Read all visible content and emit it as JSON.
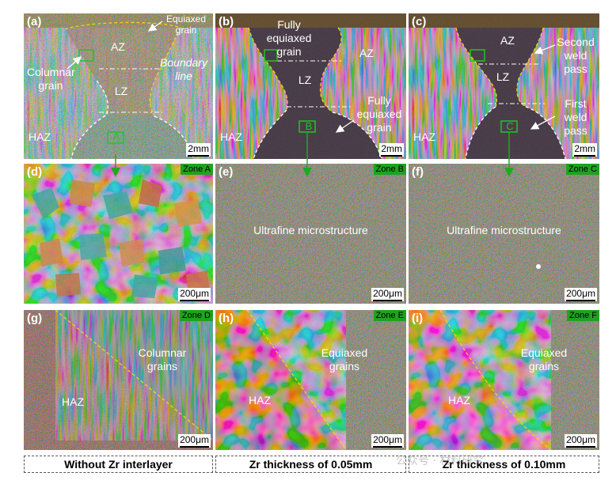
{
  "panels": {
    "a": {
      "label": "(a)",
      "az": "AZ",
      "lz": "LZ",
      "haz": "HAZ",
      "equiaxed": "Equiaxed grain",
      "columnar": "Columnar grain",
      "boundary": "Boundary line",
      "box": "A",
      "scale": "2mm"
    },
    "b": {
      "label": "(b)",
      "az": "AZ",
      "lz": "LZ",
      "haz": "HAZ",
      "fully_top": "Fully equiaxed grain",
      "fully_bottom": "Fully equiaxed grain",
      "box": "B",
      "scale": "2mm"
    },
    "c": {
      "label": "(c)",
      "az": "AZ",
      "lz": "LZ",
      "haz": "HAZ",
      "second": "Second weld pass",
      "first": "First weld pass",
      "box": "C",
      "scale": "2mm"
    },
    "d": {
      "label": "(d)",
      "zone": "Zone A",
      "scale": "200μm"
    },
    "e": {
      "label": "(e)",
      "zone": "Zone B",
      "text": "Ultrafine microstructure",
      "scale": "200μm"
    },
    "f": {
      "label": "(f)",
      "zone": "Zone C",
      "text": "Ultrafine microstructure",
      "scale": "200μm"
    },
    "g": {
      "label": "(g)",
      "zone": "Zone D",
      "text": "Columnar grains",
      "haz": "HAZ",
      "scale": "200μm"
    },
    "h": {
      "label": "(h)",
      "zone": "Zone E",
      "text": "Equiaxed grains",
      "haz": "HAZ",
      "scale": "200μm"
    },
    "i": {
      "label": "(i)",
      "zone": "Zone F",
      "text": "Equiaxed grains",
      "haz": "HAZ",
      "scale": "200μm"
    }
  },
  "captions": [
    "Without Zr interlayer",
    "Zr thickness of 0.05mm",
    "Zr thickness of 0.10mm"
  ],
  "watermark": "公众号 · 材料研究",
  "colors": {
    "zone_green": "#1fa21f",
    "dashed_yellow": "#f2d21b",
    "arrow_green": "#22a822"
  }
}
